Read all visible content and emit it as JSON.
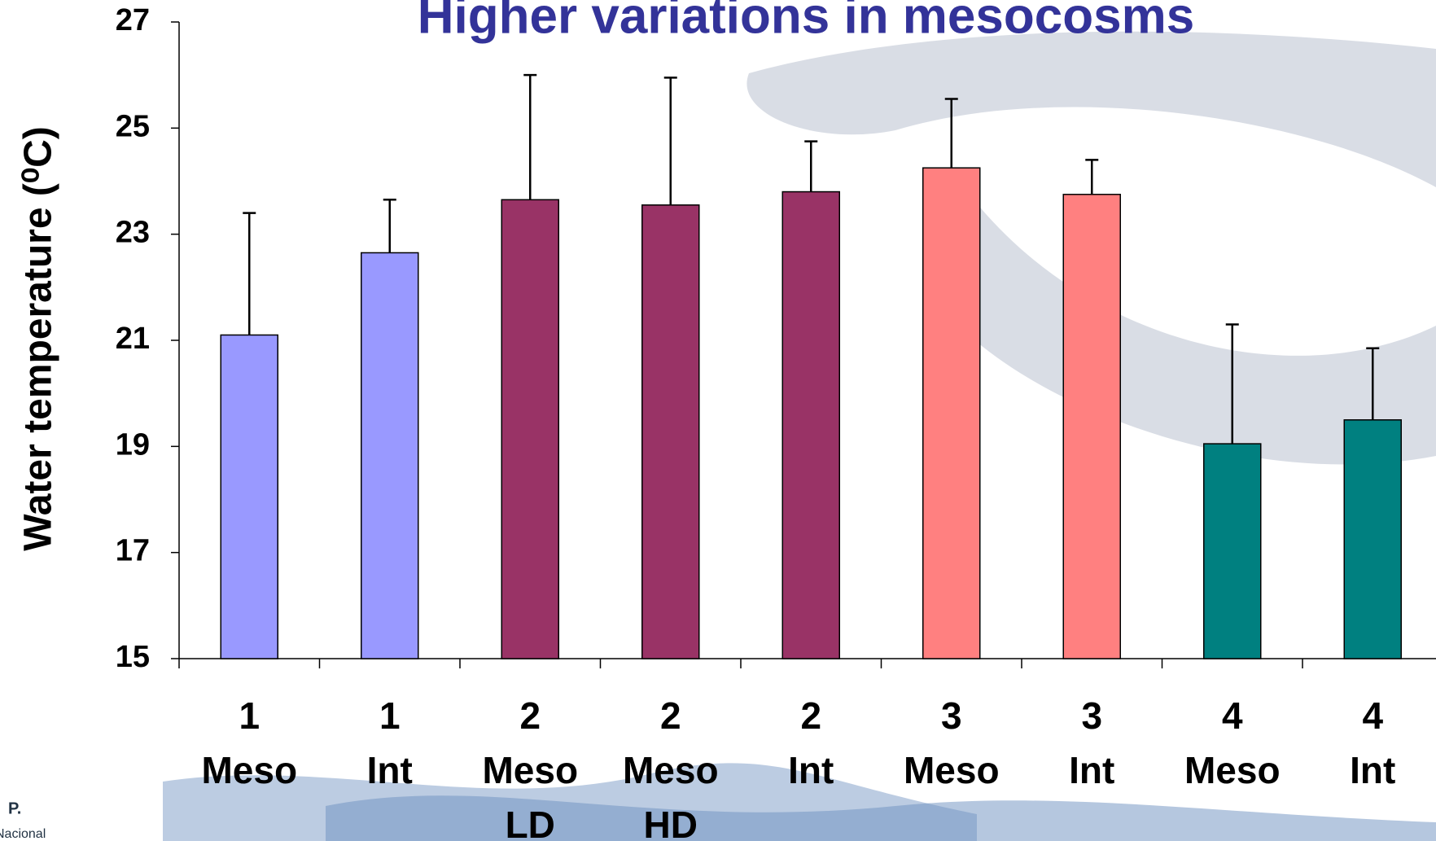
{
  "chart_data": {
    "type": "bar",
    "title": "Higher variations in mesocosms",
    "y_label": "Water temperature (⁰C)",
    "categories": [
      [
        "1",
        "Meso"
      ],
      [
        "1",
        "Int"
      ],
      [
        "2",
        "Meso",
        "LD"
      ],
      [
        "2",
        "Meso",
        "HD"
      ],
      [
        "2",
        "Int"
      ],
      [
        "3",
        "Meso"
      ],
      [
        "3",
        "Int"
      ],
      [
        "4",
        "Meso"
      ],
      [
        "4",
        "Int"
      ]
    ],
    "values": [
      21.1,
      22.65,
      23.65,
      23.55,
      23.8,
      24.25,
      23.75,
      19.05,
      19.5
    ],
    "errors": [
      2.3,
      1.0,
      2.35,
      2.4,
      0.95,
      1.3,
      0.65,
      2.25,
      1.35
    ],
    "colors": [
      "#9999ff",
      "#9999ff",
      "#993366",
      "#993366",
      "#993366",
      "#ff8080",
      "#ff8080",
      "#008080",
      "#008080"
    ],
    "ylim": [
      15,
      27
    ],
    "yticks": [
      15,
      17,
      19,
      21,
      23,
      25,
      27
    ],
    "grid": false
  },
  "logo_text": [
    "P.",
    "Nacional"
  ]
}
